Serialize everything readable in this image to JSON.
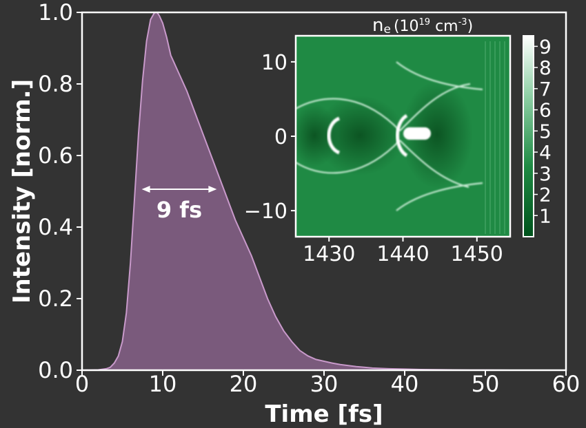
{
  "colors": {
    "background": "#333333",
    "foreground": "#ffffff",
    "pulse_fill": "#7a5a7c",
    "pulse_line": "#c99acb",
    "inset_dark": "#005a1f",
    "inset_mid": "#1f8a44",
    "inset_light": "#ffffff"
  },
  "chart_data": [
    {
      "type": "area",
      "xlabel": "Time [fs]",
      "ylabel": "Intensity [norm.]",
      "xlim": [
        0,
        60
      ],
      "ylim": [
        0,
        1.0
      ],
      "x_ticks": [
        "0",
        "10",
        "20",
        "30",
        "40",
        "50",
        "60"
      ],
      "y_ticks": [
        "0.0",
        "0.2",
        "0.4",
        "0.6",
        "0.8",
        "1.0"
      ],
      "grid": false,
      "annotation": {
        "text": "9 fs",
        "arrow_from": 7.4,
        "arrow_to": 16.7,
        "arrow_y": 0.5
      },
      "series": [
        {
          "x": [
            0,
            2,
            3,
            3.5,
            4,
            4.5,
            5,
            5.5,
            6,
            6.5,
            7,
            7.5,
            8,
            8.5,
            9,
            9.3,
            9.6,
            10,
            10.5,
            11,
            12,
            13,
            14,
            15,
            16,
            17,
            18,
            19,
            20,
            21,
            22,
            23,
            24,
            25,
            26,
            27,
            28,
            29,
            30,
            31,
            32,
            33,
            34,
            35,
            36,
            38,
            40,
            42,
            44,
            46,
            48,
            50,
            52,
            53
          ],
          "y": [
            0,
            0.001,
            0.004,
            0.008,
            0.02,
            0.04,
            0.08,
            0.16,
            0.3,
            0.48,
            0.66,
            0.81,
            0.92,
            0.98,
            1.0,
            1.0,
            0.99,
            0.97,
            0.93,
            0.88,
            0.83,
            0.78,
            0.72,
            0.66,
            0.6,
            0.54,
            0.48,
            0.42,
            0.37,
            0.32,
            0.26,
            0.2,
            0.15,
            0.11,
            0.08,
            0.055,
            0.04,
            0.03,
            0.025,
            0.02,
            0.016,
            0.013,
            0.01,
            0.008,
            0.006,
            0.004,
            0.003,
            0.002,
            0.0015,
            0.001,
            0.0005,
            0.0003,
            0.0001,
            0
          ]
        }
      ]
    },
    {
      "type": "heatmap",
      "title": "n",
      "title_sub": "e",
      "title_rest": "(10",
      "title_sup1": "19",
      "title_unit": " cm",
      "title_sup2": "-3",
      "title_close": ")",
      "xlim": [
        1425.5,
        1454.5
      ],
      "ylim": [
        -13.5,
        13.5
      ],
      "x_ticks": [
        "1430",
        "1440",
        "1450"
      ],
      "y_ticks": [
        "10",
        "0",
        "−10"
      ],
      "colorbar": {
        "range": [
          0,
          9.5
        ],
        "ticks": [
          "1",
          "2",
          "3",
          "4",
          "5",
          "6",
          "7",
          "8",
          "9"
        ]
      }
    }
  ]
}
